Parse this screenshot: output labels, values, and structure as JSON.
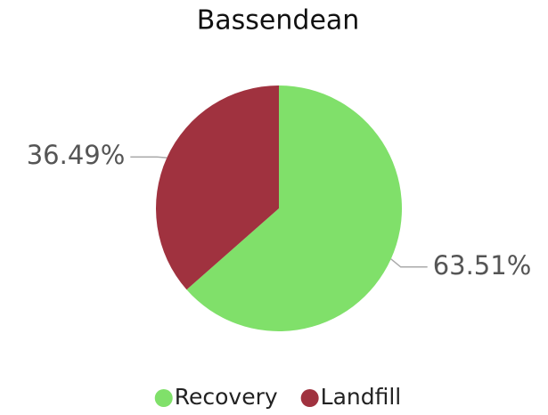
{
  "chart_data": {
    "type": "pie",
    "title": "Bassendean",
    "categories": [
      "Recovery",
      "Landfill"
    ],
    "values": [
      63.51,
      36.49
    ],
    "value_labels": [
      "63.51%",
      "36.49%"
    ],
    "colors": [
      "#80e06a",
      "#a0323f"
    ],
    "legend": "bottom"
  }
}
